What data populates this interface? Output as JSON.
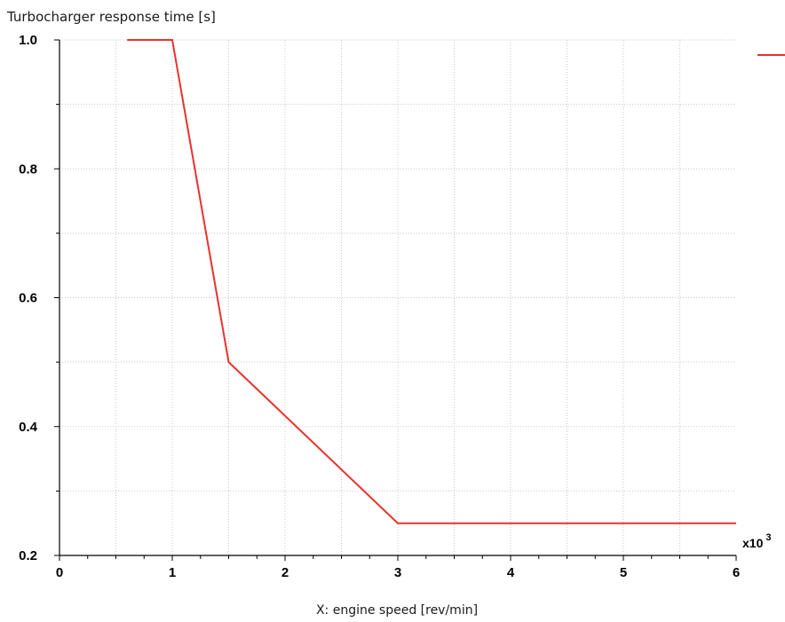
{
  "chart_data": {
    "type": "line",
    "title": "Turbocharger response time [s]",
    "xlabel": "X: engine speed [rev/min]",
    "ylabel": "",
    "x_multiplier": "x10",
    "x_multiplier_exp": "3",
    "xlim": [
      0,
      6
    ],
    "ylim": [
      0.2,
      1.0
    ],
    "grid": true,
    "legend": "top-right",
    "x_ticks": [
      0,
      1,
      2,
      3,
      4,
      5,
      6
    ],
    "x_tick_labels": [
      "0",
      "1",
      "2",
      "3",
      "4",
      "5",
      "6"
    ],
    "y_ticks": [
      0.2,
      0.4,
      0.6,
      0.8,
      1.0
    ],
    "y_tick_labels": [
      "0.2",
      "0.4",
      "0.6",
      "0.8",
      "1.0"
    ],
    "series": [
      {
        "color": "#e8322e",
        "x": [
          0.6,
          1.0,
          1.5,
          3.0,
          6.0
        ],
        "y": [
          1.0,
          1.0,
          0.5,
          0.25,
          0.25
        ]
      }
    ]
  }
}
